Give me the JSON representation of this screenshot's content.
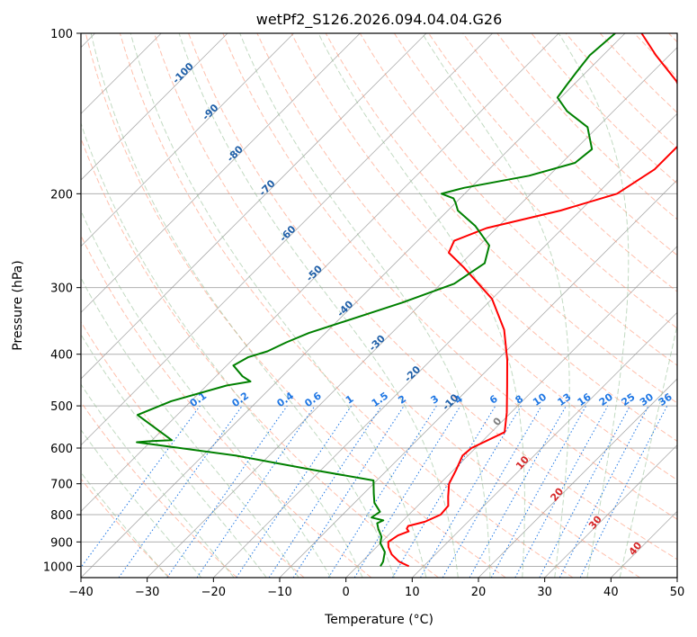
{
  "chart_data": {
    "type": "line",
    "title": "wetPf2_S126.2026.094.04.04.G26",
    "xlabel": "Temperature (°C)",
    "ylabel": "Pressure (hPa)",
    "xlim": [
      -40,
      50
    ],
    "ylim": [
      1050,
      100
    ],
    "y_scale": "log",
    "skew_degrees": 45,
    "x_ticks": [
      -40,
      -30,
      -20,
      -10,
      0,
      10,
      20,
      30,
      40,
      50
    ],
    "y_ticks": [
      100,
      200,
      300,
      400,
      500,
      600,
      700,
      800,
      900,
      1000
    ],
    "grid": true,
    "colors": {
      "temperature": "#ff0000",
      "dewpoint": "#008000",
      "mixing_ratio": "#1f77e4",
      "dry_adiabat": "#ff8c69",
      "moist_adiabat": "#8fbc8f",
      "isotherm": "#999999",
      "cape_label": "#d62728"
    },
    "series": [
      {
        "name": "",
        "key": "temperature",
        "points": [
          [
            7.8,
            1000
          ],
          [
            5.6,
            980
          ],
          [
            3.4,
            950
          ],
          [
            1.8,
            920
          ],
          [
            1.0,
            900
          ],
          [
            1.5,
            875
          ],
          [
            2.5,
            860
          ],
          [
            1.8,
            850
          ],
          [
            1.6,
            840
          ],
          [
            3.5,
            825
          ],
          [
            4.8,
            800
          ],
          [
            4.6,
            770
          ],
          [
            3.2,
            740
          ],
          [
            1.4,
            700
          ],
          [
            0.4,
            660
          ],
          [
            -0.8,
            620
          ],
          [
            -0.6,
            600
          ],
          [
            2.0,
            560
          ],
          [
            -0.6,
            515
          ],
          [
            -4.5,
            460
          ],
          [
            -8.5,
            410
          ],
          [
            -13.5,
            360
          ],
          [
            -20.0,
            315
          ],
          [
            -29.0,
            275
          ],
          [
            -33.5,
            258
          ],
          [
            -34.5,
            245
          ],
          [
            -31.5,
            232
          ],
          [
            -23.0,
            215
          ],
          [
            -17.0,
            200
          ],
          [
            -15.0,
            180
          ],
          [
            -15.0,
            160
          ],
          [
            -18.5,
            140
          ],
          [
            -25.0,
            123
          ],
          [
            -32.0,
            110
          ],
          [
            -37.5,
            100
          ]
        ]
      },
      {
        "name": "",
        "key": "dewpoint",
        "points": [
          [
            3.5,
            1000
          ],
          [
            3.2,
            980
          ],
          [
            2.0,
            940
          ],
          [
            0.0,
            905
          ],
          [
            -0.8,
            880
          ],
          [
            -2.5,
            850
          ],
          [
            -3.5,
            830
          ],
          [
            -3.0,
            820
          ],
          [
            -5.2,
            810
          ],
          [
            -4.8,
            790
          ],
          [
            -7.0,
            760
          ],
          [
            -8.5,
            730
          ],
          [
            -10.5,
            690
          ],
          [
            -21.0,
            660
          ],
          [
            -35.0,
            620
          ],
          [
            -47.0,
            595
          ],
          [
            -52.0,
            585
          ],
          [
            -50.0,
            582
          ],
          [
            -47.0,
            580
          ],
          [
            -56.0,
            520
          ],
          [
            -53.0,
            490
          ],
          [
            -47.0,
            458
          ],
          [
            -44.0,
            450
          ],
          [
            -46.0,
            440
          ],
          [
            -49.0,
            420
          ],
          [
            -48.0,
            405
          ],
          [
            -46.0,
            395
          ],
          [
            -44.5,
            380
          ],
          [
            -42.5,
            365
          ],
          [
            -33.0,
            320
          ],
          [
            -28.0,
            295
          ],
          [
            -26.5,
            270
          ],
          [
            -28.5,
            250
          ],
          [
            -33.5,
            230
          ],
          [
            -38.5,
            215
          ],
          [
            -40.0,
            208
          ],
          [
            -41.0,
            204
          ],
          [
            -43.5,
            200
          ],
          [
            -41.0,
            195
          ],
          [
            -33.0,
            185
          ],
          [
            -28.0,
            175
          ],
          [
            -27.5,
            165
          ],
          [
            -31.5,
            150
          ],
          [
            -37.0,
            140
          ],
          [
            -40.5,
            132
          ],
          [
            -41.0,
            125
          ],
          [
            -41.5,
            118
          ],
          [
            -42.0,
            110
          ],
          [
            -41.5,
            100
          ]
        ]
      }
    ],
    "mixing_ratio_labels": [
      "0.1",
      "0.2",
      "0.4",
      "0.6",
      "1",
      "1.5",
      "2",
      "3",
      "4",
      "6",
      "8",
      "10",
      "13",
      "16",
      "20",
      "25",
      "30",
      "36"
    ],
    "mixing_ratio_values": [
      0.1,
      0.2,
      0.4,
      0.6,
      1,
      1.5,
      2,
      3,
      4,
      6,
      8,
      10,
      13,
      16,
      20,
      25,
      30,
      36
    ],
    "dry_adiabat_labels": [
      {
        "text": "-100",
        "t": -100,
        "p": 120
      },
      {
        "text": "-90",
        "t": -90,
        "p": 142
      },
      {
        "text": "-80",
        "t": -80,
        "p": 170
      },
      {
        "text": "-70",
        "t": -70,
        "p": 197
      },
      {
        "text": "-60",
        "t": -60,
        "p": 240
      },
      {
        "text": "-50",
        "t": -50,
        "p": 285
      },
      {
        "text": "-40",
        "t": -40,
        "p": 332
      },
      {
        "text": "-30",
        "t": -30,
        "p": 385
      },
      {
        "text": "-20",
        "t": -20,
        "p": 440
      },
      {
        "text": "-10",
        "t": -10,
        "p": 497
      }
    ],
    "moist_adiabat_labels": [
      {
        "text": "0",
        "t": 0,
        "p": 540
      },
      {
        "text": "10",
        "t": 10,
        "p": 645
      },
      {
        "text": "20",
        "t": 20,
        "p": 740
      },
      {
        "text": "30",
        "t": 30,
        "p": 835
      },
      {
        "text": "40",
        "t": 40,
        "p": 935
      }
    ]
  }
}
